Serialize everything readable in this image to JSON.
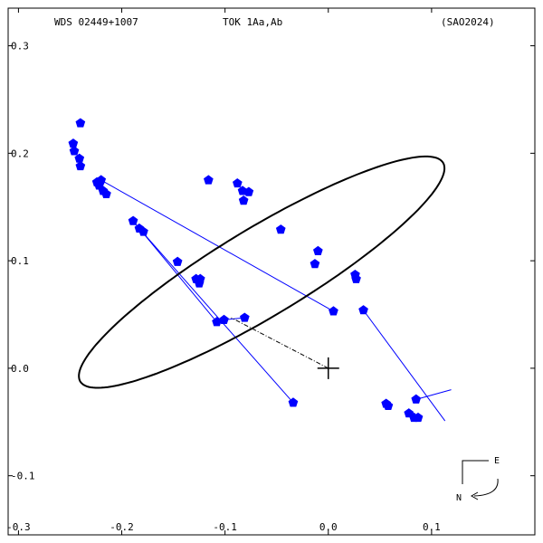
{
  "header": {
    "left": "WDS 02449+1007",
    "center": "TOK   1Aa,Ab",
    "right": "(SAO2024)"
  },
  "compass": {
    "east": "E",
    "north": "N"
  },
  "chart_data": {
    "type": "scatter",
    "title": "",
    "xlabel": "",
    "ylabel": "",
    "xlim": [
      -0.31,
      0.2
    ],
    "ylim": [
      -0.155,
      0.335
    ],
    "x_ticks": [
      {
        "value": -0.3,
        "label": "-0.3"
      },
      {
        "value": -0.2,
        "label": "-0.2"
      },
      {
        "value": -0.1,
        "label": "-0.1"
      },
      {
        "value": 0.0,
        "label": "0.0"
      },
      {
        "value": 0.1,
        "label": "0.1"
      }
    ],
    "y_ticks": [
      {
        "value": 0.3,
        "label": "0.3"
      },
      {
        "value": 0.2,
        "label": "0.2"
      },
      {
        "value": 0.1,
        "label": "0.1"
      },
      {
        "value": 0.0,
        "label": "0.0"
      },
      {
        "value": -0.1,
        "label": "-0.1"
      }
    ],
    "primary_star": {
      "x": 0.0,
      "y": 0.0
    },
    "orbit": {
      "center": [
        -0.0645,
        0.0894
      ],
      "semi_major": 0.203,
      "semi_minor": 0.0413,
      "angle_deg": 30
    },
    "line_of_nodes": [
      [
        0.0,
        0.0
      ],
      [
        -0.094,
        0.047
      ]
    ],
    "observations": [
      {
        "x": -0.24,
        "y": 0.228
      },
      {
        "x": -0.247,
        "y": 0.209
      },
      {
        "x": -0.246,
        "y": 0.202
      },
      {
        "x": -0.241,
        "y": 0.195
      },
      {
        "x": -0.24,
        "y": 0.188
      },
      {
        "x": -0.224,
        "y": 0.173
      },
      {
        "x": -0.222,
        "y": 0.17
      },
      {
        "x": -0.22,
        "y": 0.175
      },
      {
        "x": -0.218,
        "y": 0.165
      },
      {
        "x": -0.215,
        "y": 0.162
      },
      {
        "x": -0.189,
        "y": 0.137
      },
      {
        "x": -0.183,
        "y": 0.13
      },
      {
        "x": -0.179,
        "y": 0.127
      },
      {
        "x": -0.146,
        "y": 0.099
      },
      {
        "x": -0.128,
        "y": 0.083
      },
      {
        "x": -0.125,
        "y": 0.079
      },
      {
        "x": -0.124,
        "y": 0.083
      },
      {
        "x": -0.108,
        "y": 0.043
      },
      {
        "x": -0.101,
        "y": 0.045
      },
      {
        "x": -0.081,
        "y": 0.047
      },
      {
        "x": -0.116,
        "y": 0.175
      },
      {
        "x": -0.088,
        "y": 0.172
      },
      {
        "x": -0.083,
        "y": 0.165
      },
      {
        "x": -0.077,
        "y": 0.164
      },
      {
        "x": -0.082,
        "y": 0.156
      },
      {
        "x": -0.046,
        "y": 0.129
      },
      {
        "x": -0.01,
        "y": 0.109
      },
      {
        "x": -0.013,
        "y": 0.097
      },
      {
        "x": 0.026,
        "y": 0.087
      },
      {
        "x": 0.027,
        "y": 0.083
      },
      {
        "x": 0.034,
        "y": 0.054
      },
      {
        "x": 0.005,
        "y": 0.053
      },
      {
        "x": -0.034,
        "y": -0.032
      },
      {
        "x": 0.056,
        "y": -0.033
      },
      {
        "x": 0.058,
        "y": -0.035
      },
      {
        "x": 0.078,
        "y": -0.042
      },
      {
        "x": 0.083,
        "y": -0.046
      },
      {
        "x": 0.087,
        "y": -0.046
      },
      {
        "x": 0.085,
        "y": -0.029
      }
    ],
    "residual_lines": [
      [
        [
          -0.22,
          0.175
        ],
        [
          0.005,
          0.053
        ]
      ],
      [
        [
          -0.189,
          0.137
        ],
        [
          -0.108,
          0.043
        ]
      ],
      [
        [
          -0.183,
          0.13
        ],
        [
          -0.034,
          -0.032
        ]
      ],
      [
        [
          -0.101,
          0.045
        ],
        [
          -0.081,
          0.047
        ]
      ],
      [
        [
          0.034,
          0.054
        ],
        [
          0.113,
          -0.049
        ]
      ],
      [
        [
          0.085,
          -0.029
        ],
        [
          0.119,
          -0.02
        ]
      ]
    ]
  }
}
